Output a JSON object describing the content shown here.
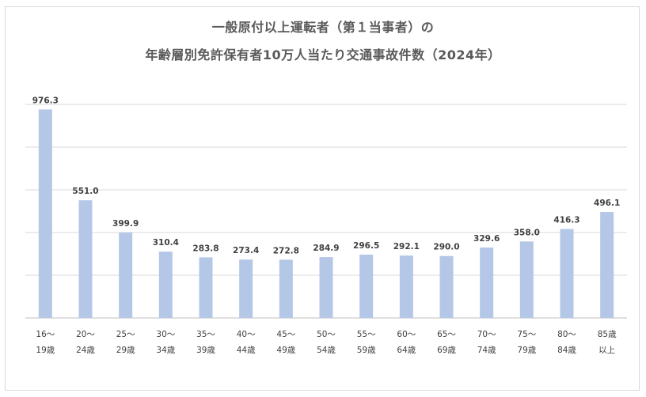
{
  "chart_data": {
    "type": "bar",
    "title_line1": "一般原付以上運転者（第１当事者）の",
    "title_line2": "年齢層別免許保有者10万人当たり交通事故件数（2024年）",
    "categories": [
      [
        "16～",
        "19歳"
      ],
      [
        "20～",
        "24歳"
      ],
      [
        "25～",
        "29歳"
      ],
      [
        "30～",
        "34歳"
      ],
      [
        "35～",
        "39歳"
      ],
      [
        "40～",
        "44歳"
      ],
      [
        "45～",
        "49歳"
      ],
      [
        "50～",
        "54歳"
      ],
      [
        "55～",
        "59歳"
      ],
      [
        "60～",
        "64歳"
      ],
      [
        "65～",
        "69歳"
      ],
      [
        "70～",
        "74歳"
      ],
      [
        "75～",
        "79歳"
      ],
      [
        "80～",
        "84歳"
      ],
      [
        "85歳",
        "以上"
      ]
    ],
    "values": [
      976.3,
      551.0,
      399.9,
      310.4,
      283.8,
      273.4,
      272.8,
      284.9,
      296.5,
      292.1,
      290.0,
      329.6,
      358.0,
      416.3,
      496.1
    ],
    "value_labels": [
      "976.3",
      "551.0",
      "399.9",
      "310.4",
      "283.8",
      "273.4",
      "272.8",
      "284.9",
      "296.5",
      "292.1",
      "290.0",
      "329.6",
      "358.0",
      "416.3",
      "496.1"
    ],
    "ylim": [
      0,
      1000
    ],
    "grid_step": 200,
    "bar_color": "#b4c7e7",
    "grid_color": "#d9d9d9",
    "xlabel": "",
    "ylabel": ""
  }
}
